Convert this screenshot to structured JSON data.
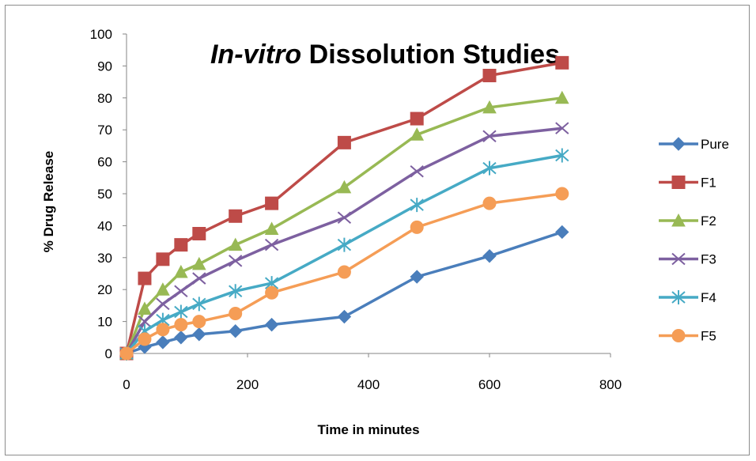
{
  "chart_data": {
    "type": "line",
    "title_italic": "In-vitro",
    "title_rest": " Dissolution Studies",
    "xlabel": "Time in minutes",
    "ylabel": "% Drug Release",
    "xlim": [
      0,
      800
    ],
    "ylim": [
      0,
      100
    ],
    "xticks": [
      0,
      200,
      400,
      600,
      800
    ],
    "yticks": [
      0,
      10,
      20,
      30,
      40,
      50,
      60,
      70,
      80,
      90,
      100
    ],
    "gridlines": false,
    "legend_position": "right",
    "x": [
      0,
      30,
      60,
      90,
      120,
      180,
      240,
      360,
      480,
      600,
      720
    ],
    "series": [
      {
        "name": "Pure",
        "color": "#4A7EBB",
        "marker": "diamond",
        "values": [
          0,
          2,
          3.5,
          5,
          6,
          7,
          9,
          11.5,
          24,
          30.5,
          38
        ]
      },
      {
        "name": "F1",
        "color": "#BE4B48",
        "marker": "square",
        "values": [
          0,
          23.5,
          29.5,
          34,
          37.5,
          43,
          47,
          66,
          73.5,
          87,
          91
        ]
      },
      {
        "name": "F2",
        "color": "#98B954",
        "marker": "triangle",
        "values": [
          0,
          14,
          20,
          25.5,
          28,
          34,
          39,
          52,
          68.5,
          77,
          80
        ]
      },
      {
        "name": "F3",
        "color": "#7D60A0",
        "marker": "x",
        "values": [
          0,
          10,
          15.5,
          19.5,
          23.5,
          29,
          34,
          42.5,
          57,
          68,
          70.5
        ]
      },
      {
        "name": "F4",
        "color": "#46AAC5",
        "marker": "star",
        "values": [
          0,
          7,
          10.5,
          13,
          15.5,
          19.5,
          22,
          34,
          46.5,
          58,
          62
        ]
      },
      {
        "name": "F5",
        "color": "#F59D56",
        "marker": "circle",
        "values": [
          0,
          4.5,
          7.5,
          9,
          10,
          12.5,
          19,
          25.5,
          39.5,
          47,
          50
        ]
      }
    ]
  }
}
